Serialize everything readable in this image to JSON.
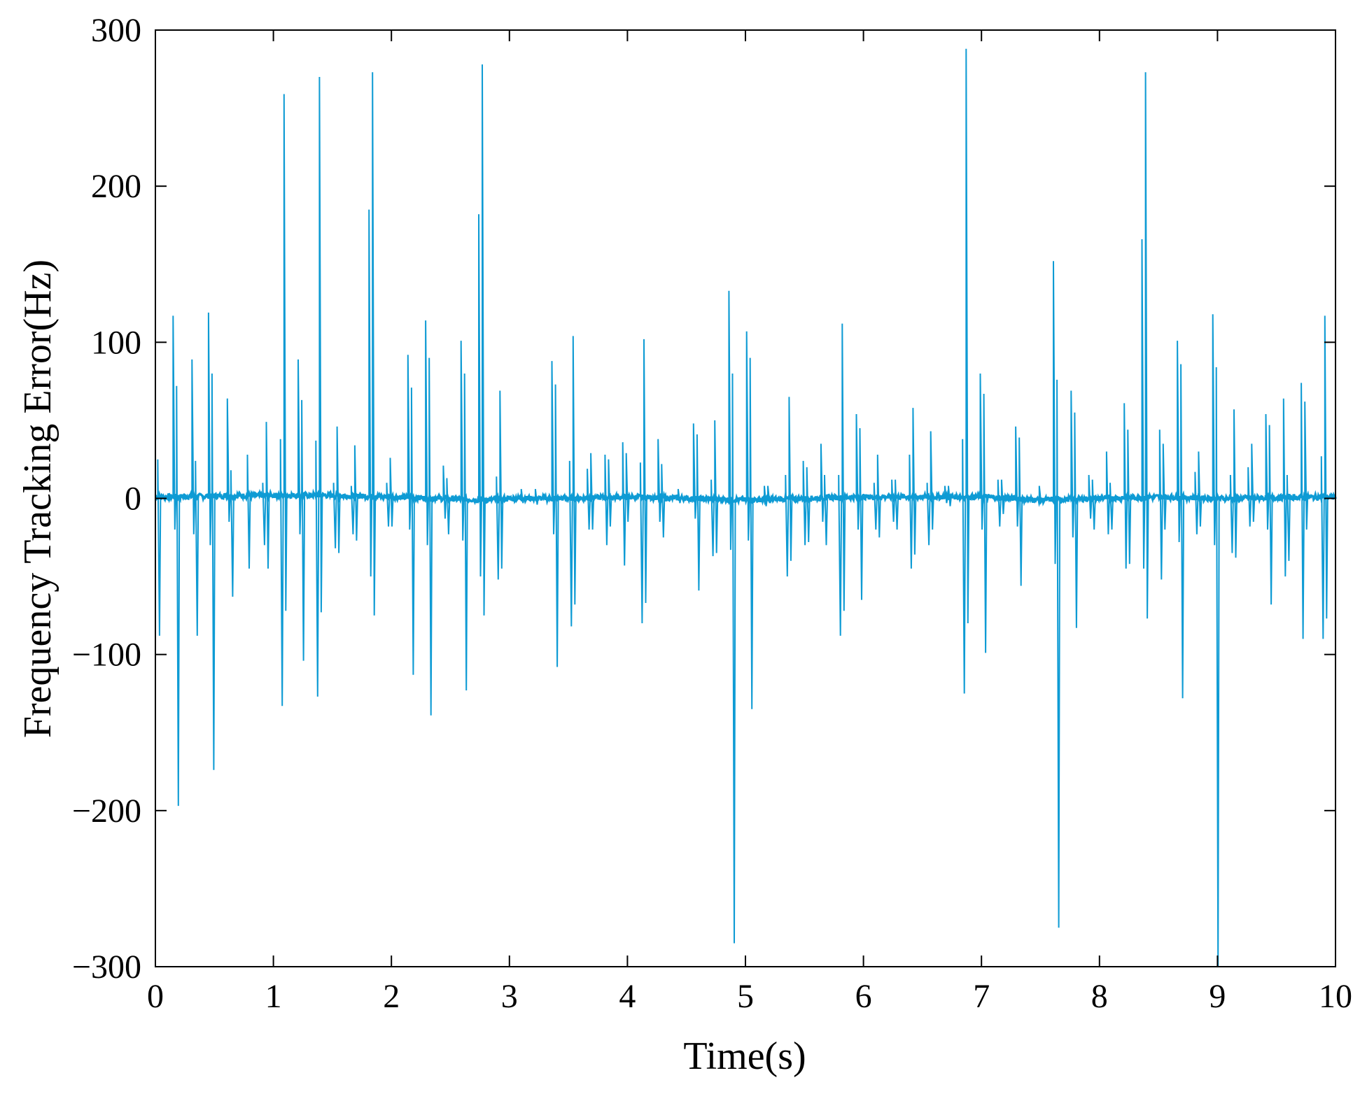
{
  "colors": {
    "series": "#0e9bd4",
    "axis": "#000000",
    "background": "#ffffff"
  },
  "chart_data": {
    "type": "line",
    "title": "",
    "xlabel": "Time(s)",
    "ylabel": "Frequency Tracking Error(Hz)",
    "xlim": [
      0,
      10
    ],
    "ylim": [
      -300,
      300
    ],
    "xticks": [
      0,
      1,
      2,
      3,
      4,
      5,
      6,
      7,
      8,
      9,
      10
    ],
    "yticks": [
      -300,
      -200,
      -100,
      0,
      100,
      200,
      300
    ],
    "xtick_labels": [
      "0",
      "1",
      "2",
      "3",
      "4",
      "5",
      "6",
      "7",
      "8",
      "9",
      "10"
    ],
    "ytick_labels": [
      "−300",
      "−200",
      "−100",
      "0",
      "100",
      "200",
      "300"
    ],
    "grid": false,
    "legend": false,
    "series": [
      {
        "baseline": [
          [
            0,
            1
          ],
          [
            1,
            2
          ],
          [
            1.4,
            2
          ],
          [
            2,
            1
          ],
          [
            2.8,
            -1
          ],
          [
            3,
            0
          ],
          [
            3.5,
            0
          ],
          [
            4,
            1
          ],
          [
            4.5,
            0
          ],
          [
            5,
            -1
          ],
          [
            5.5,
            0
          ],
          [
            6,
            1
          ],
          [
            6.5,
            1
          ],
          [
            7,
            1
          ],
          [
            7.5,
            -1
          ],
          [
            8,
            0
          ],
          [
            8.5,
            1
          ],
          [
            9,
            0
          ],
          [
            10,
            1
          ]
        ],
        "spikes": [
          [
            0.02,
            25,
            -88
          ],
          [
            0.15,
            117,
            -20
          ],
          [
            0.18,
            72,
            -197
          ],
          [
            0.31,
            89,
            -23
          ],
          [
            0.34,
            24,
            -88
          ],
          [
            0.45,
            119,
            -30
          ],
          [
            0.48,
            80,
            -174
          ],
          [
            0.61,
            64,
            -15
          ],
          [
            0.64,
            18,
            -63
          ],
          [
            0.78,
            28,
            -45
          ],
          [
            0.91,
            10,
            -30
          ],
          [
            0.94,
            49,
            -45
          ],
          [
            1.06,
            38,
            -133
          ],
          [
            1.09,
            259,
            -72
          ],
          [
            1.21,
            89,
            -23
          ],
          [
            1.24,
            63,
            -104
          ],
          [
            1.36,
            37,
            -127
          ],
          [
            1.39,
            270,
            -73
          ],
          [
            1.51,
            10,
            -32
          ],
          [
            1.54,
            46,
            -35
          ],
          [
            1.66,
            8,
            -23
          ],
          [
            1.69,
            34,
            -27
          ],
          [
            1.81,
            185,
            -50
          ],
          [
            1.84,
            273,
            -75
          ],
          [
            1.96,
            10,
            -18
          ],
          [
            1.99,
            26,
            -18
          ],
          [
            2.14,
            92,
            -20
          ],
          [
            2.17,
            71,
            -113
          ],
          [
            2.29,
            114,
            -30
          ],
          [
            2.32,
            90,
            -139
          ],
          [
            2.44,
            21,
            -13
          ],
          [
            2.47,
            13,
            -23
          ],
          [
            2.59,
            101,
            -27
          ],
          [
            2.62,
            80,
            -123
          ],
          [
            2.74,
            182,
            -50
          ],
          [
            2.77,
            278,
            -75
          ],
          [
            2.89,
            14,
            -52
          ],
          [
            2.92,
            69,
            -45
          ],
          [
            3.1,
            6,
            -3
          ],
          [
            3.22,
            6,
            -4
          ],
          [
            3.36,
            88,
            -23
          ],
          [
            3.39,
            73,
            -108
          ],
          [
            3.51,
            24,
            -82
          ],
          [
            3.54,
            104,
            -68
          ],
          [
            3.66,
            19,
            -20
          ],
          [
            3.69,
            29,
            -20
          ],
          [
            3.81,
            28,
            -30
          ],
          [
            3.84,
            25,
            -18
          ],
          [
            3.96,
            36,
            -43
          ],
          [
            3.99,
            29,
            -15
          ],
          [
            4.11,
            23,
            -80
          ],
          [
            4.14,
            102,
            -67
          ],
          [
            4.26,
            38,
            -15
          ],
          [
            4.29,
            22,
            -25
          ],
          [
            4.43,
            6,
            -3
          ],
          [
            4.56,
            48,
            -13
          ],
          [
            4.59,
            41,
            -59
          ],
          [
            4.71,
            12,
            -37
          ],
          [
            4.74,
            50,
            -35
          ],
          [
            4.86,
            133,
            -33
          ],
          [
            4.89,
            80,
            -285
          ],
          [
            5.01,
            107,
            -27
          ],
          [
            5.04,
            90,
            -135
          ],
          [
            5.16,
            8,
            -5
          ],
          [
            5.19,
            8,
            -3
          ],
          [
            5.34,
            15,
            -50
          ],
          [
            5.37,
            65,
            -40
          ],
          [
            5.49,
            24,
            -30
          ],
          [
            5.52,
            20,
            -28
          ],
          [
            5.64,
            35,
            -15
          ],
          [
            5.67,
            15,
            -30
          ],
          [
            5.79,
            15,
            -88
          ],
          [
            5.82,
            112,
            -72
          ],
          [
            5.94,
            54,
            -20
          ],
          [
            5.97,
            45,
            -65
          ],
          [
            6.09,
            10,
            -20
          ],
          [
            6.12,
            28,
            -25
          ],
          [
            6.24,
            12,
            -15
          ],
          [
            6.27,
            12,
            -20
          ],
          [
            6.39,
            28,
            -45
          ],
          [
            6.42,
            58,
            -36
          ],
          [
            6.54,
            10,
            -30
          ],
          [
            6.57,
            43,
            -20
          ],
          [
            6.69,
            8,
            -3
          ],
          [
            6.72,
            8,
            -5
          ],
          [
            6.84,
            38,
            -125
          ],
          [
            6.87,
            288,
            -80
          ],
          [
            6.99,
            80,
            -20
          ],
          [
            7.02,
            67,
            -99
          ],
          [
            7.14,
            12,
            -18
          ],
          [
            7.17,
            12,
            -10
          ],
          [
            7.29,
            46,
            -18
          ],
          [
            7.32,
            39,
            -56
          ],
          [
            7.49,
            8,
            -3
          ],
          [
            7.61,
            152,
            -42
          ],
          [
            7.64,
            76,
            -275
          ],
          [
            7.76,
            69,
            -25
          ],
          [
            7.79,
            55,
            -83
          ],
          [
            7.91,
            15,
            -13
          ],
          [
            7.94,
            12,
            -20
          ],
          [
            8.06,
            30,
            -23
          ],
          [
            8.09,
            10,
            -20
          ],
          [
            8.21,
            61,
            -45
          ],
          [
            8.24,
            44,
            -42
          ],
          [
            8.36,
            166,
            -45
          ],
          [
            8.39,
            273,
            -77
          ],
          [
            8.51,
            44,
            -52
          ],
          [
            8.54,
            35,
            -20
          ],
          [
            8.66,
            101,
            -28
          ],
          [
            8.69,
            86,
            -128
          ],
          [
            8.81,
            17,
            -23
          ],
          [
            8.84,
            30,
            -18
          ],
          [
            8.96,
            118,
            -30
          ],
          [
            8.99,
            84,
            -300
          ],
          [
            9.11,
            15,
            -35
          ],
          [
            9.14,
            57,
            -38
          ],
          [
            9.26,
            20,
            -18
          ],
          [
            9.29,
            35,
            -15
          ],
          [
            9.41,
            54,
            -20
          ],
          [
            9.44,
            47,
            -68
          ],
          [
            9.56,
            64,
            -50
          ],
          [
            9.59,
            15,
            -40
          ],
          [
            9.71,
            74,
            -90
          ],
          [
            9.74,
            62,
            -20
          ],
          [
            9.88,
            27,
            -90
          ],
          [
            9.91,
            117,
            -77
          ]
        ]
      }
    ]
  }
}
